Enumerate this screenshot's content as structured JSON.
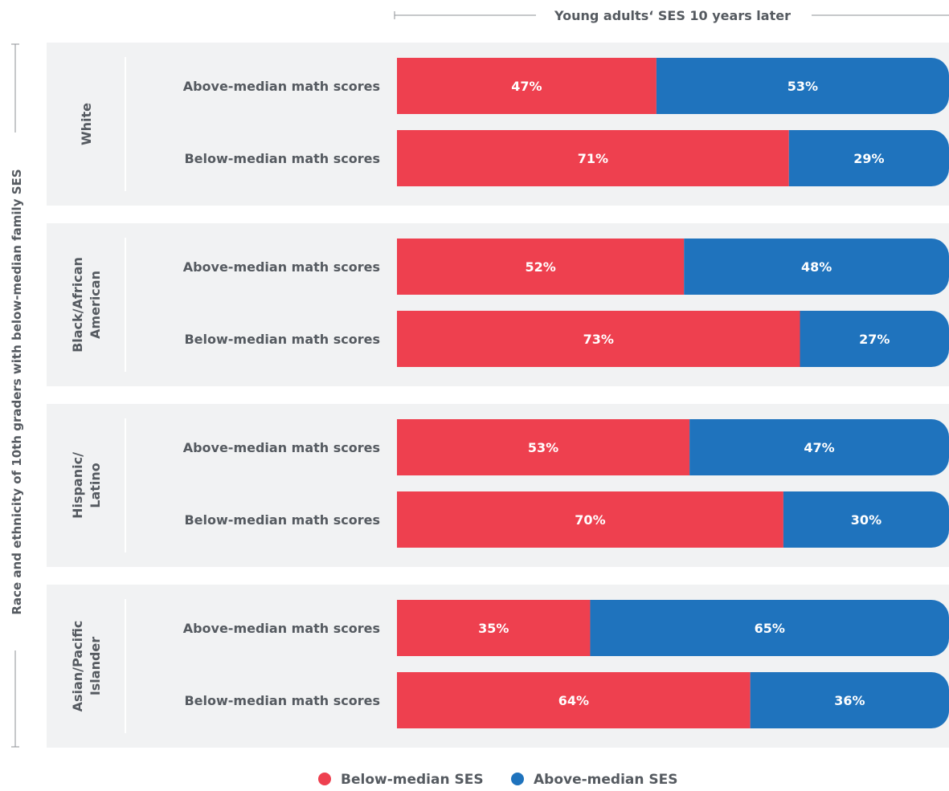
{
  "chart_data": {
    "type": "bar",
    "stacked": true,
    "orientation": "horizontal",
    "top_label": "Young adults‘ SES 10 years later",
    "side_label": "Race and ethnicity of 10th graders with below-median family SES",
    "xlim": [
      0,
      100
    ],
    "grid": false,
    "legend_placement": "bottom-center",
    "series": [
      {
        "name": "Below-median SES",
        "color": "#ee404f"
      },
      {
        "name": "Above-median SES",
        "color": "#1f73bd"
      }
    ],
    "groups": [
      {
        "name_lines": [
          "White"
        ],
        "bars": [
          {
            "label": "Above-median math scores",
            "values": [
              47,
              53
            ],
            "value_labels": [
              "47%",
              "53%"
            ]
          },
          {
            "label": "Below-median math scores",
            "values": [
              71,
              29
            ],
            "value_labels": [
              "71%",
              "29%"
            ]
          }
        ]
      },
      {
        "name_lines": [
          "Black/African",
          "American"
        ],
        "bars": [
          {
            "label": "Above-median math scores",
            "values": [
              52,
              48
            ],
            "value_labels": [
              "52%",
              "48%"
            ]
          },
          {
            "label": "Below-median math scores",
            "values": [
              73,
              27
            ],
            "value_labels": [
              "73%",
              "27%"
            ]
          }
        ]
      },
      {
        "name_lines": [
          "Hispanic/",
          "Latino"
        ],
        "bars": [
          {
            "label": "Above-median math scores",
            "values": [
              53,
              47
            ],
            "value_labels": [
              "53%",
              "47%"
            ]
          },
          {
            "label": "Below-median math scores",
            "values": [
              70,
              30
            ],
            "value_labels": [
              "70%",
              "30%"
            ]
          }
        ]
      },
      {
        "name_lines": [
          "Asian/Pacific",
          "Islander"
        ],
        "bars": [
          {
            "label": "Above-median math scores",
            "values": [
              35,
              65
            ],
            "value_labels": [
              "35%",
              "65%"
            ]
          },
          {
            "label": "Below-median math scores",
            "values": [
              64,
              36
            ],
            "value_labels": [
              "64%",
              "36%"
            ]
          }
        ]
      }
    ]
  },
  "colors": {
    "panel_bg": "#f1f2f3",
    "text": "#555a60",
    "axis_line": "#8d9196",
    "separator": "#ffffff",
    "bar_label_text": "#ffffff"
  }
}
